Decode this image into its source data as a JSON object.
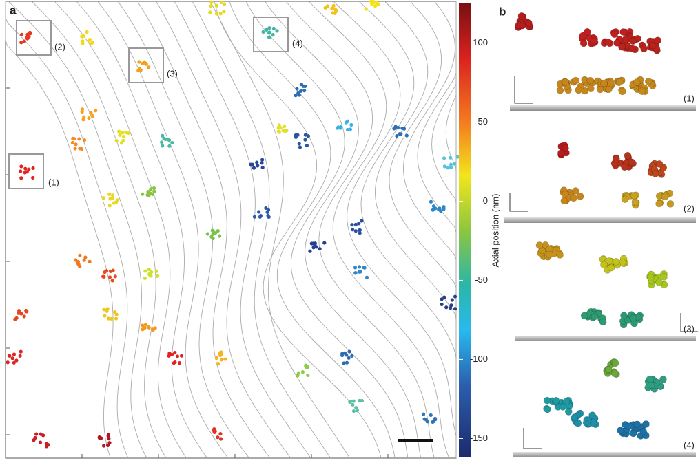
{
  "panel_a": {
    "label": "a",
    "boxes": [
      "(1)",
      "(2)",
      "(3)",
      "(4)"
    ]
  },
  "colorbar": {
    "label": "Axial position (nm)",
    "lim": [
      -162,
      125
    ],
    "ticks": [
      100,
      50,
      0,
      -50,
      -100,
      -150
    ]
  },
  "panel_b": {
    "label": "b",
    "insets": [
      "(1)",
      "(2)",
      "(3)",
      "(4)"
    ]
  }
}
